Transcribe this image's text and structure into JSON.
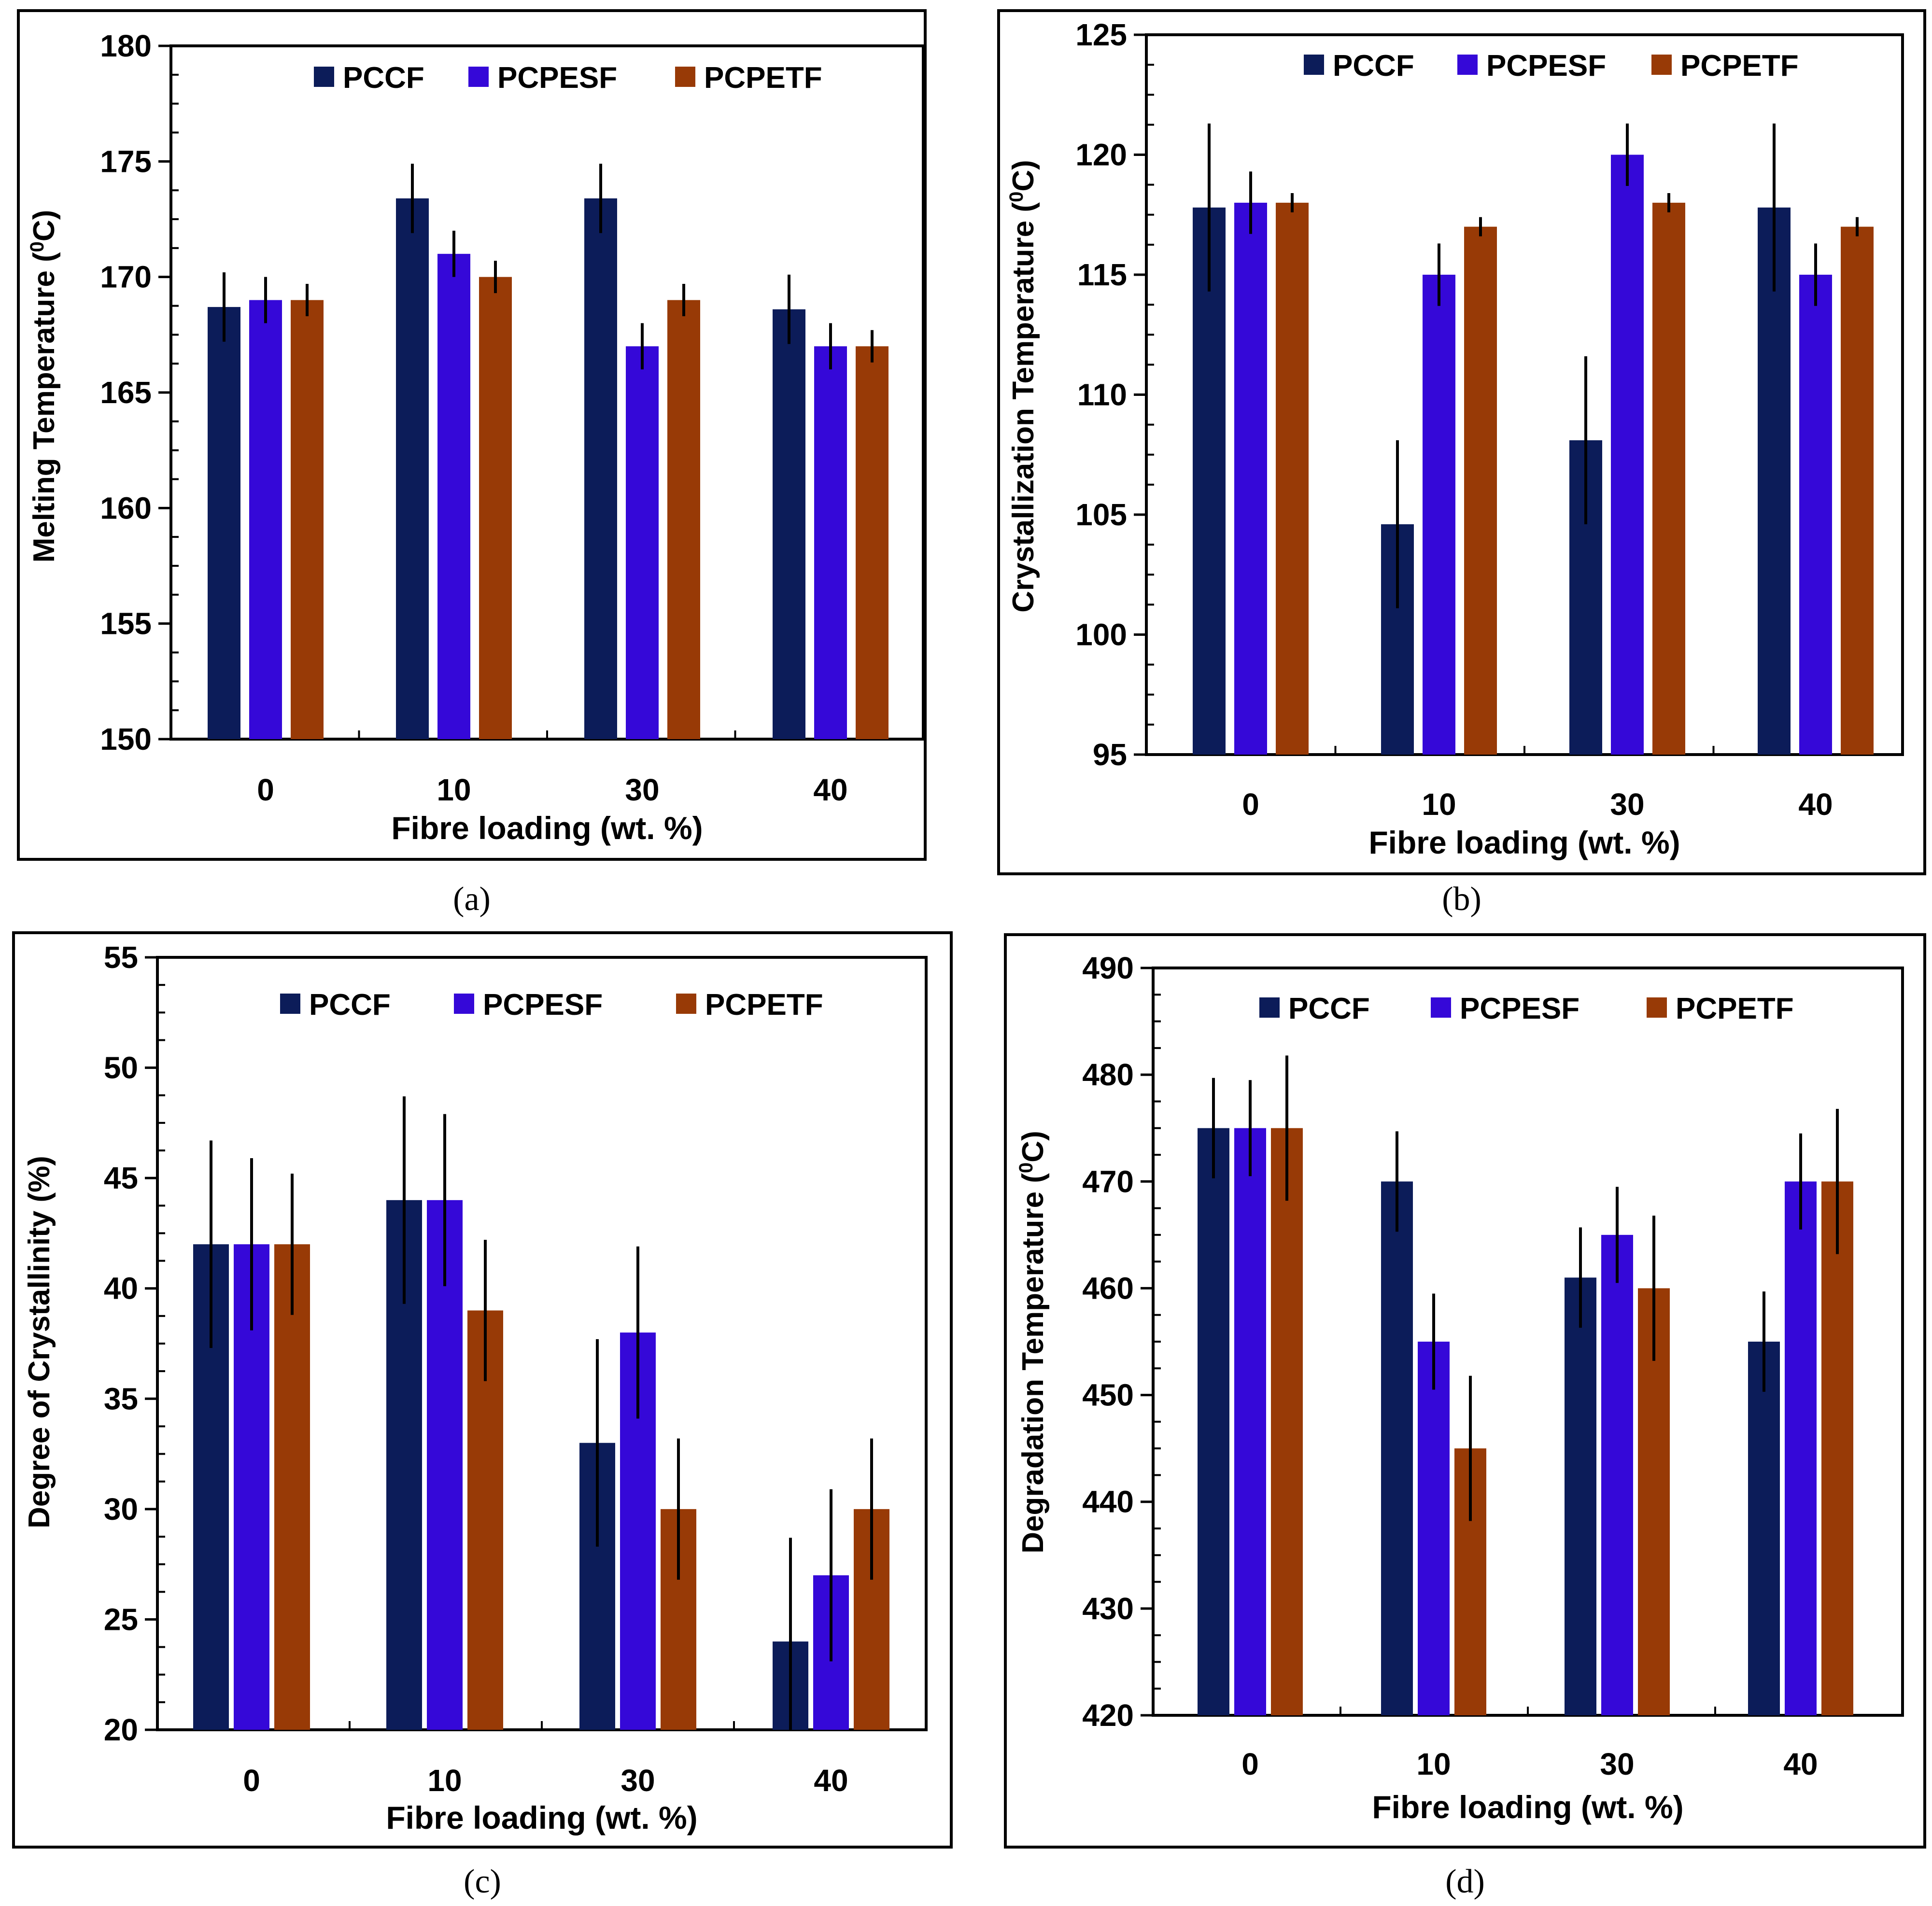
{
  "colors": {
    "PCCF": "#0c1c59",
    "PCPESF": "#3508d8",
    "PCPETF": "#983a06",
    "axis": "#000000",
    "error_bar": "#000000"
  },
  "chart_data": [
    {
      "type": "bar",
      "panel": "a",
      "caption": "(a)",
      "categories": [
        "0",
        "10",
        "30",
        "40"
      ],
      "series": [
        {
          "name": "PCCF",
          "values": [
            168.7,
            173.4,
            173.4,
            168.6
          ],
          "errors": [
            1.5,
            1.5,
            1.5,
            1.5
          ]
        },
        {
          "name": "PCPESF",
          "values": [
            169.0,
            171.0,
            167.0,
            167.0
          ],
          "errors": [
            1.0,
            1.0,
            1.0,
            1.0
          ]
        },
        {
          "name": "PCPETF",
          "values": [
            169.0,
            170.0,
            169.0,
            167.0
          ],
          "errors": [
            0.7,
            0.7,
            0.7,
            0.7
          ]
        }
      ],
      "xlabel": "Fibre loading (wt. %)",
      "ylabel_main": "Melting Temperature (",
      "ylabel_sup": "0",
      "ylabel_end": "C)",
      "ylim": [
        150,
        180
      ],
      "yticks": [
        "150",
        "155",
        "160",
        "165",
        "170",
        "175",
        "180"
      ],
      "legend": "top-right"
    },
    {
      "type": "bar",
      "panel": "b",
      "caption": "(b)",
      "categories": [
        "0",
        "10",
        "30",
        "40"
      ],
      "series": [
        {
          "name": "PCCF",
          "values": [
            117.8,
            104.6,
            108.1,
            117.8
          ],
          "errors": [
            3.5,
            3.5,
            3.5,
            3.5
          ]
        },
        {
          "name": "PCPESF",
          "values": [
            118.0,
            115.0,
            120.0,
            115.0
          ],
          "errors": [
            1.3,
            1.3,
            1.3,
            1.3
          ]
        },
        {
          "name": "PCPETF",
          "values": [
            118.0,
            117.0,
            118.0,
            117.0
          ],
          "errors": [
            0.4,
            0.4,
            0.4,
            0.4
          ]
        }
      ],
      "xlabel": "Fibre loading (wt. %)",
      "ylabel_main": "Crystallization Temperature (",
      "ylabel_sup": "0",
      "ylabel_end": "C)",
      "ylim": [
        95,
        125
      ],
      "yticks": [
        "95",
        "100",
        "105",
        "110",
        "115",
        "120",
        "125"
      ],
      "legend": "top-right"
    },
    {
      "type": "bar",
      "panel": "c",
      "caption": "(c)",
      "categories": [
        "0",
        "10",
        "30",
        "40"
      ],
      "series": [
        {
          "name": "PCCF",
          "values": [
            42,
            44,
            33,
            24
          ],
          "errors": [
            4.7,
            4.7,
            4.7,
            4.7
          ]
        },
        {
          "name": "PCPESF",
          "values": [
            42,
            44,
            38,
            27
          ],
          "errors": [
            3.9,
            3.9,
            3.9,
            3.9
          ]
        },
        {
          "name": "PCPETF",
          "values": [
            42,
            39,
            30,
            30
          ],
          "errors": [
            3.2,
            3.2,
            3.2,
            3.2
          ]
        }
      ],
      "xlabel": "Fibre loading (wt. %)",
      "ylabel_main": "Degree of Crystallinity (%)",
      "ylabel_sup": "",
      "ylabel_end": "",
      "ylim": [
        20,
        55
      ],
      "yticks": [
        "20",
        "25",
        "30",
        "35",
        "40",
        "45",
        "50",
        "55"
      ],
      "legend": "top-right"
    },
    {
      "type": "bar",
      "panel": "d",
      "caption": "(d)",
      "categories": [
        "0",
        "10",
        "30",
        "40"
      ],
      "series": [
        {
          "name": "PCCF",
          "values": [
            475,
            470,
            461,
            455
          ],
          "errors": [
            4.7,
            4.7,
            4.7,
            4.7
          ]
        },
        {
          "name": "PCPESF",
          "values": [
            475,
            455,
            465,
            470
          ],
          "errors": [
            4.5,
            4.5,
            4.5,
            4.5
          ]
        },
        {
          "name": "PCPETF",
          "values": [
            475,
            445,
            460,
            470
          ],
          "errors": [
            6.8,
            6.8,
            6.8,
            6.8
          ]
        }
      ],
      "xlabel": "Fibre loading (wt. %)",
      "ylabel_main": "Degradation Temperature (",
      "ylabel_sup": "0",
      "ylabel_end": "C)",
      "ylim": [
        420,
        490
      ],
      "yticks": [
        "420",
        "430",
        "440",
        "450",
        "460",
        "470",
        "480",
        "490"
      ],
      "legend": "top-right"
    }
  ]
}
